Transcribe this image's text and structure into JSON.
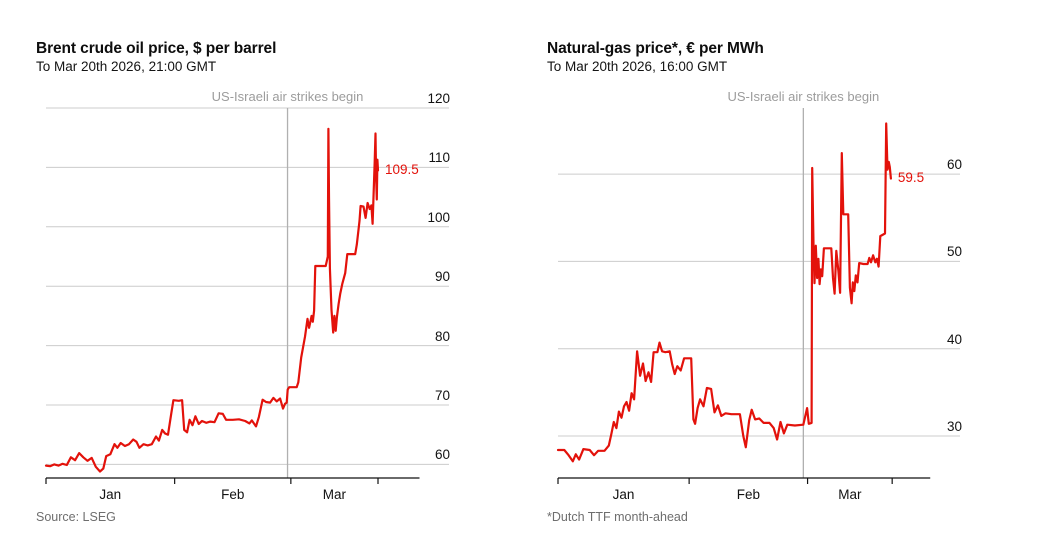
{
  "page": {
    "background": "#ffffff"
  },
  "chart_data": [
    {
      "type": "line",
      "title": "Brent crude oil price, $ per barrel",
      "subtitle": "To Mar 20th 2026, 21:00 GMT",
      "annotation": "US-Israeli air strikes begin",
      "annotation_day": 58.2,
      "footnote": "Source: LSEG",
      "end_label": "109.5",
      "line_color": "#e3120b",
      "grid_color": "#cccccc",
      "axis_color": "#121212",
      "event_line_color": "#b0b0b0",
      "x_unit": "days since Jan 1 2026",
      "x_ticks_days": [
        0,
        31,
        59,
        80
      ],
      "x_end_day": 90,
      "month_labels": [
        {
          "label": "Jan",
          "day": 15.5
        },
        {
          "label": "Feb",
          "day": 45
        },
        {
          "label": "Mar",
          "day": 69.5
        }
      ],
      "y_gridlines": [
        60,
        70,
        80,
        90,
        100,
        110,
        120
      ],
      "ylim": [
        56,
        122
      ],
      "points": [
        [
          0,
          59.8
        ],
        [
          1,
          59.7
        ],
        [
          2,
          60
        ],
        [
          3,
          59.8
        ],
        [
          4,
          60.1
        ],
        [
          5,
          59.9
        ],
        [
          6,
          61.2
        ],
        [
          7,
          60.7
        ],
        [
          8,
          61.9
        ],
        [
          9,
          61.2
        ],
        [
          10,
          60.6
        ],
        [
          11,
          61.1
        ],
        [
          12,
          59.6
        ],
        [
          13,
          58.8
        ],
        [
          13.8,
          59.3
        ],
        [
          14.5,
          61.4
        ],
        [
          15.5,
          61.7
        ],
        [
          16.5,
          63.4
        ],
        [
          17.2,
          62.8
        ],
        [
          18,
          63.6
        ],
        [
          19,
          63.1
        ],
        [
          20,
          63.4
        ],
        [
          21,
          64.2
        ],
        [
          21.8,
          63.8
        ],
        [
          22.5,
          62.8
        ],
        [
          23.5,
          63.4
        ],
        [
          24.5,
          63.2
        ],
        [
          25.5,
          63.4
        ],
        [
          26.5,
          64.7
        ],
        [
          27.2,
          64
        ],
        [
          28,
          65.8
        ],
        [
          28.7,
          65.2
        ],
        [
          29.4,
          65
        ],
        [
          30.2,
          68.6
        ],
        [
          30.7,
          70.8
        ],
        [
          32,
          70.7
        ],
        [
          32.8,
          70.8
        ],
        [
          33.3,
          65.8
        ],
        [
          34,
          65.4
        ],
        [
          34.6,
          67.5
        ],
        [
          35.3,
          66.6
        ],
        [
          36,
          68.1
        ],
        [
          36.8,
          66.8
        ],
        [
          37.6,
          67.3
        ],
        [
          38.6,
          67
        ],
        [
          39.6,
          67.2
        ],
        [
          40.6,
          67.1
        ],
        [
          41.6,
          68.6
        ],
        [
          42.6,
          68.5
        ],
        [
          43.4,
          67.5
        ],
        [
          45,
          67.5
        ],
        [
          46.5,
          67.6
        ],
        [
          48,
          67.3
        ],
        [
          49,
          66.9
        ],
        [
          49.6,
          67.4
        ],
        [
          50.6,
          66.4
        ],
        [
          51.3,
          68
        ],
        [
          52.2,
          70.9
        ],
        [
          53,
          70.5
        ],
        [
          54,
          70.4
        ],
        [
          54.8,
          71.2
        ],
        [
          55.6,
          70.6
        ],
        [
          56.4,
          71.1
        ],
        [
          57.1,
          69.4
        ],
        [
          57.6,
          70.2
        ],
        [
          58,
          70.4
        ],
        [
          58.25,
          72.6
        ],
        [
          58.6,
          73
        ],
        [
          60.4,
          73
        ],
        [
          60.8,
          73.8
        ],
        [
          61.5,
          78
        ],
        [
          62.4,
          81.5
        ],
        [
          63,
          84.5
        ],
        [
          63.4,
          83
        ],
        [
          64,
          85
        ],
        [
          64.3,
          84
        ],
        [
          64.6,
          85.9
        ],
        [
          64.9,
          93.4
        ],
        [
          67.4,
          93.4
        ],
        [
          67.9,
          95
        ],
        [
          68.05,
          116.5
        ],
        [
          68.2,
          105
        ],
        [
          68.4,
          93
        ],
        [
          68.8,
          86
        ],
        [
          69.2,
          82.2
        ],
        [
          69.5,
          85
        ],
        [
          69.8,
          82.5
        ],
        [
          70.1,
          84.8
        ],
        [
          70.5,
          87
        ],
        [
          70.9,
          88.7
        ],
        [
          71.4,
          90.4
        ],
        [
          72.1,
          92.2
        ],
        [
          72.6,
          95.4
        ],
        [
          74.5,
          95.4
        ],
        [
          74.9,
          97
        ],
        [
          75.3,
          99.5
        ],
        [
          75.55,
          101
        ],
        [
          75.8,
          103.5
        ],
        [
          76.5,
          103.4
        ],
        [
          77,
          101.5
        ],
        [
          77.5,
          104
        ],
        [
          78,
          103
        ],
        [
          78.4,
          103.6
        ],
        [
          78.7,
          100.5
        ],
        [
          79,
          107
        ],
        [
          79.2,
          111
        ],
        [
          79.4,
          115.7
        ],
        [
          79.55,
          108.5
        ],
        [
          79.7,
          104.6
        ],
        [
          79.85,
          111.3
        ],
        [
          80,
          109.5
        ]
      ]
    },
    {
      "type": "line",
      "title": "Natural-gas price*, € per MWh",
      "subtitle": "To Mar 20th 2026, 16:00 GMT",
      "annotation": "US-Israeli air strikes begin",
      "annotation_day": 58.0,
      "footnote": "*Dutch TTF month-ahead",
      "end_label": "59.5",
      "line_color": "#e3120b",
      "grid_color": "#cccccc",
      "axis_color": "#121212",
      "event_line_color": "#b0b0b0",
      "x_unit": "days since Jan 1 2026",
      "x_ticks_days": [
        0,
        31,
        59,
        79
      ],
      "x_end_day": 88,
      "month_labels": [
        {
          "label": "Jan",
          "day": 15.5
        },
        {
          "label": "Feb",
          "day": 45
        },
        {
          "label": "Mar",
          "day": 69
        }
      ],
      "y_gridlines": [
        30,
        40,
        50,
        60
      ],
      "ylim": [
        26,
        67
      ],
      "points": [
        [
          0,
          28.4
        ],
        [
          1.5,
          28.4
        ],
        [
          2.5,
          27.8
        ],
        [
          3.5,
          27.1
        ],
        [
          4.2,
          27.9
        ],
        [
          5,
          27.3
        ],
        [
          6,
          28.5
        ],
        [
          7.5,
          28.4
        ],
        [
          8.5,
          27.8
        ],
        [
          9.5,
          28.3
        ],
        [
          11,
          28.3
        ],
        [
          12,
          28.9
        ],
        [
          12.6,
          30.2
        ],
        [
          13.2,
          31.6
        ],
        [
          13.8,
          30.9
        ],
        [
          14.4,
          32.8
        ],
        [
          15,
          32.1
        ],
        [
          15.6,
          33.4
        ],
        [
          16.2,
          33.9
        ],
        [
          16.8,
          32.9
        ],
        [
          17.4,
          34.9
        ],
        [
          18,
          34.2
        ],
        [
          18.7,
          39.7
        ],
        [
          19.4,
          36.9
        ],
        [
          20.1,
          38.3
        ],
        [
          20.7,
          36.3
        ],
        [
          21.4,
          37.3
        ],
        [
          22,
          36.2
        ],
        [
          22.6,
          39.6
        ],
        [
          23.5,
          39.6
        ],
        [
          24,
          40.7
        ],
        [
          24.6,
          39.7
        ],
        [
          25.4,
          39.6
        ],
        [
          26.4,
          39.7
        ],
        [
          27,
          38.2
        ],
        [
          27.6,
          37.1
        ],
        [
          28.2,
          38
        ],
        [
          29,
          37.5
        ],
        [
          29.8,
          38.9
        ],
        [
          31.5,
          38.9
        ],
        [
          32,
          31.9
        ],
        [
          32.4,
          31.4
        ],
        [
          33,
          33.2
        ],
        [
          33.6,
          34.2
        ],
        [
          34.4,
          33.4
        ],
        [
          35.2,
          35.5
        ],
        [
          36.2,
          35.4
        ],
        [
          37,
          32.7
        ],
        [
          37.8,
          33.5
        ],
        [
          38.6,
          32.3
        ],
        [
          39.6,
          32.6
        ],
        [
          41,
          32.5
        ],
        [
          43,
          32.5
        ],
        [
          43.8,
          30
        ],
        [
          44.4,
          28.7
        ],
        [
          45.2,
          31.8
        ],
        [
          45.8,
          33
        ],
        [
          46.6,
          31.9
        ],
        [
          47.6,
          32
        ],
        [
          48.6,
          31.5
        ],
        [
          50,
          31.5
        ],
        [
          51,
          30.9
        ],
        [
          51.8,
          29.6
        ],
        [
          52.6,
          31.6
        ],
        [
          53.4,
          30.3
        ],
        [
          54.2,
          31.3
        ],
        [
          56,
          31.2
        ],
        [
          58,
          31.3
        ],
        [
          58.9,
          33.2
        ],
        [
          59.3,
          31.4
        ],
        [
          59.95,
          31.5
        ],
        [
          60.1,
          60.7
        ],
        [
          60.4,
          52
        ],
        [
          60.65,
          47.5
        ],
        [
          60.95,
          51.8
        ],
        [
          61.25,
          48.1
        ],
        [
          61.55,
          50.3
        ],
        [
          61.85,
          47.4
        ],
        [
          62.15,
          49.1
        ],
        [
          62.45,
          48.3
        ],
        [
          62.85,
          51.5
        ],
        [
          64.6,
          51.5
        ],
        [
          65,
          48.1
        ],
        [
          65.4,
          46.3
        ],
        [
          65.8,
          51.2
        ],
        [
          66.3,
          48.9
        ],
        [
          66.7,
          46.4
        ],
        [
          67.1,
          62.4
        ],
        [
          67.45,
          55.4
        ],
        [
          68.6,
          55.4
        ],
        [
          69,
          47
        ],
        [
          69.4,
          45.2
        ],
        [
          69.7,
          47.6
        ],
        [
          70.05,
          46.6
        ],
        [
          70.4,
          48.4
        ],
        [
          70.8,
          47.6
        ],
        [
          71.2,
          49.8
        ],
        [
          72.2,
          49.7
        ],
        [
          73.2,
          49.7
        ],
        [
          73.6,
          50.4
        ],
        [
          74,
          49.9
        ],
        [
          74.5,
          50.7
        ],
        [
          75,
          49.9
        ],
        [
          75.4,
          50.3
        ],
        [
          75.8,
          49.4
        ],
        [
          76.2,
          52.9
        ],
        [
          77.3,
          53.2
        ],
        [
          77.6,
          65.8
        ],
        [
          77.9,
          60.5
        ],
        [
          78.2,
          61.4
        ],
        [
          78.45,
          60.8
        ],
        [
          78.7,
          59.5
        ]
      ]
    }
  ]
}
